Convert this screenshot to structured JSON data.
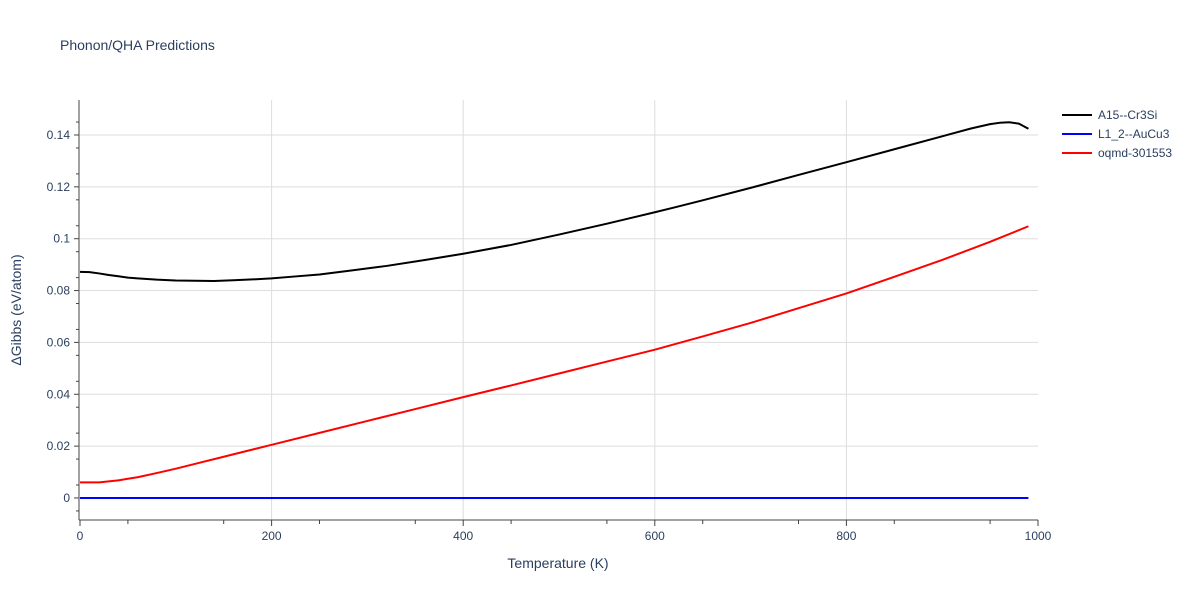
{
  "chart_data": {
    "type": "line",
    "title": "Phonon/QHA Predictions",
    "xlabel": "Temperature (K)",
    "ylabel": "ΔGibbs (eV/atom)",
    "xlim": [
      0,
      1000
    ],
    "ylim": [
      -0.0085,
      0.1535
    ],
    "x_ticks": [
      0,
      200,
      400,
      600,
      800,
      1000
    ],
    "y_ticks": [
      0,
      0.02,
      0.04,
      0.06,
      0.08,
      0.1,
      0.12,
      0.14
    ],
    "x_tick_labels": [
      "0",
      "200",
      "400",
      "600",
      "800",
      "1000"
    ],
    "y_tick_labels": [
      "0",
      "0.02",
      "0.04",
      "0.06",
      "0.08",
      "0.1",
      "0.12",
      "0.14"
    ],
    "grid": true,
    "legend_position": "top-right",
    "series": [
      {
        "name": "A15--Cr3Si",
        "color": "#000000",
        "x": [
          0,
          10,
          20,
          30,
          40,
          50,
          60,
          80,
          100,
          120,
          140,
          160,
          180,
          200,
          220,
          250,
          280,
          320,
          360,
          400,
          450,
          500,
          550,
          600,
          620,
          650,
          700,
          750,
          800,
          850,
          900,
          910,
          930,
          950,
          960,
          970,
          980,
          990
        ],
        "y": [
          0.0872,
          0.0871,
          0.0866,
          0.086,
          0.0855,
          0.085,
          0.0847,
          0.0842,
          0.0839,
          0.0838,
          0.0837,
          0.084,
          0.0843,
          0.0847,
          0.0853,
          0.0862,
          0.0876,
          0.0895,
          0.0918,
          0.0942,
          0.0976,
          0.1016,
          0.1058,
          0.1102,
          0.112,
          0.1148,
          0.1196,
          0.1246,
          0.1295,
          0.1345,
          0.1395,
          0.1405,
          0.1425,
          0.1442,
          0.1447,
          0.1449,
          0.1444,
          0.1424
        ]
      },
      {
        "name": "L1_2--AuCu3",
        "color": "#0000ff",
        "x": [
          0,
          990
        ],
        "y": [
          0,
          0
        ]
      },
      {
        "name": "oqmd-301553",
        "color": "#ff0000",
        "x": [
          0,
          10,
          20,
          30,
          40,
          50,
          60,
          80,
          100,
          125,
          150,
          175,
          200,
          250,
          300,
          350,
          400,
          450,
          500,
          550,
          600,
          650,
          700,
          750,
          800,
          850,
          900,
          950,
          990
        ],
        "y": [
          0.006,
          0.006,
          0.006,
          0.0064,
          0.0068,
          0.0074,
          0.008,
          0.0096,
          0.0113,
          0.0136,
          0.0159,
          0.0182,
          0.0205,
          0.0251,
          0.0297,
          0.0343,
          0.0389,
          0.0434,
          0.048,
          0.0526,
          0.0572,
          0.0623,
          0.0675,
          0.0732,
          0.0789,
          0.0853,
          0.0918,
          0.0988,
          0.1048
        ]
      }
    ]
  }
}
